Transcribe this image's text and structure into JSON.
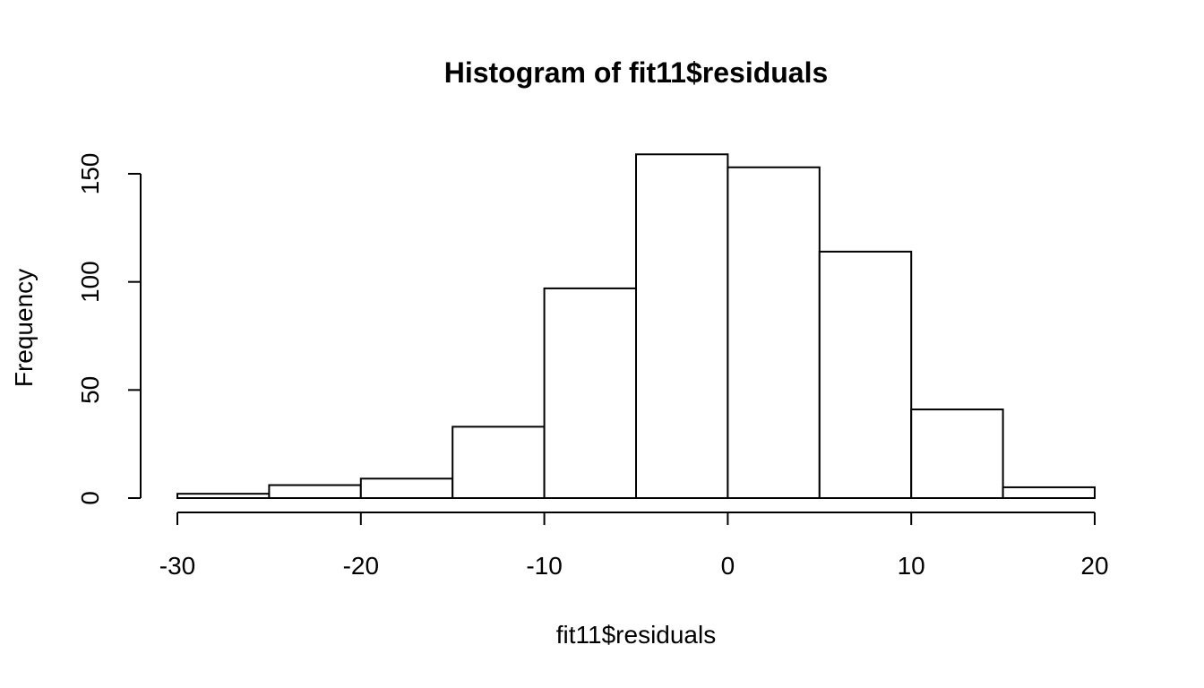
{
  "chart_data": {
    "type": "bar",
    "title": "Histogram of fit11$residuals",
    "xlabel": "fit11$residuals",
    "ylabel": "Frequency",
    "bins": [
      {
        "from": -30,
        "to": -25,
        "value": 2
      },
      {
        "from": -25,
        "to": -20,
        "value": 6
      },
      {
        "from": -20,
        "to": -15,
        "value": 9
      },
      {
        "from": -15,
        "to": -10,
        "value": 33
      },
      {
        "from": -10,
        "to": -5,
        "value": 97
      },
      {
        "from": -5,
        "to": 0,
        "value": 159
      },
      {
        "from": 0,
        "to": 5,
        "value": 153
      },
      {
        "from": 5,
        "to": 10,
        "value": 114
      },
      {
        "from": 10,
        "to": 15,
        "value": 41
      },
      {
        "from": 15,
        "to": 20,
        "value": 5
      }
    ],
    "xlim": [
      -30,
      20
    ],
    "ylim": [
      0,
      150
    ],
    "x_ticks": [
      "-30",
      "-20",
      "-10",
      "0",
      "10",
      "20"
    ],
    "y_ticks": [
      "0",
      "50",
      "100",
      "150"
    ],
    "grid": false,
    "colors": {
      "bar_fill": "#ffffff",
      "bar_stroke": "#000000"
    }
  }
}
